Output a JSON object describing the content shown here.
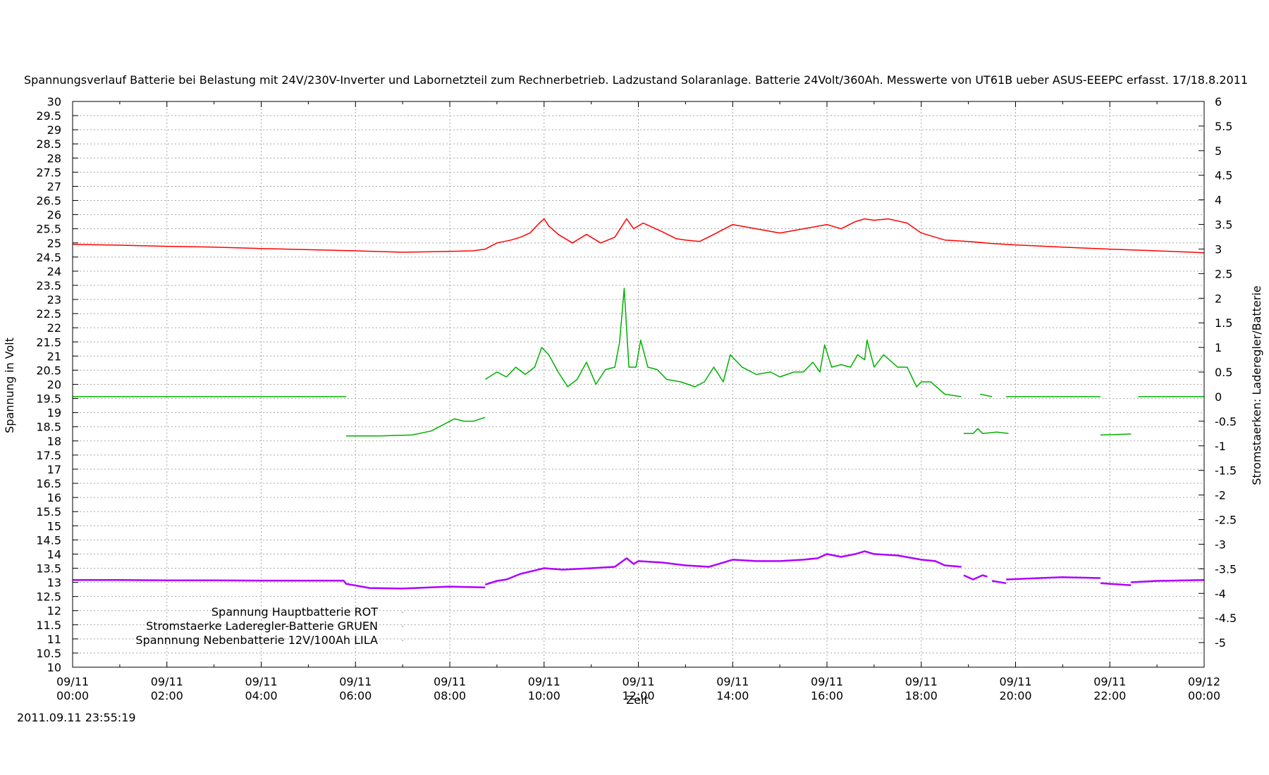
{
  "chart_data": {
    "type": "line",
    "title": "Spannungsverlauf Batterie bei Belastung mit 24V/230V-Inverter und Labornetzteil zum Rechnerbetrieb. Ladzustand Solaranlage. Batterie 24Volt/360Ah. Messwerte von UT61B ueber ASUS-EEEPC erfasst. 17/18.8.2011",
    "xlabel": "Zeit",
    "ylabel": "Spannung in Volt",
    "y2label": "Stromstaerken: Laderegler/Batterie",
    "timestamp": "2011.09.11 23:55:19",
    "grid": true,
    "legend_position": "bottom-left",
    "xlim": [
      "09/11 00:00",
      "09/12 00:00"
    ],
    "ylim": [
      10,
      30
    ],
    "y2lim": [
      -5.5,
      6.0
    ],
    "x_ticks": [
      {
        "hour": 0,
        "date": "09/11",
        "time": "00:00"
      },
      {
        "hour": 2,
        "date": "09/11",
        "time": "02:00"
      },
      {
        "hour": 4,
        "date": "09/11",
        "time": "04:00"
      },
      {
        "hour": 6,
        "date": "09/11",
        "time": "06:00"
      },
      {
        "hour": 8,
        "date": "09/11",
        "time": "08:00"
      },
      {
        "hour": 10,
        "date": "09/11",
        "time": "10:00"
      },
      {
        "hour": 12,
        "date": "09/11",
        "time": "12:00"
      },
      {
        "hour": 14,
        "date": "09/11",
        "time": "14:00"
      },
      {
        "hour": 16,
        "date": "09/11",
        "time": "16:00"
      },
      {
        "hour": 18,
        "date": "09/11",
        "time": "18:00"
      },
      {
        "hour": 20,
        "date": "09/11",
        "time": "20:00"
      },
      {
        "hour": 22,
        "date": "09/11",
        "time": "22:00"
      },
      {
        "hour": 24,
        "date": "09/12",
        "time": "00:00"
      }
    ],
    "y_ticks": [
      "10",
      "10.5",
      "11",
      "11.5",
      "12",
      "12.5",
      "13",
      "13.5",
      "14",
      "14.5",
      "15",
      "15.5",
      "16",
      "16.5",
      "17",
      "17.5",
      "18",
      "18.5",
      "19",
      "19.5",
      "20",
      "20.5",
      "21",
      "21.5",
      "22",
      "22.5",
      "23",
      "23.5",
      "24",
      "24.5",
      "25",
      "25.5",
      "26",
      "26.5",
      "27",
      "27.5",
      "28",
      "28.5",
      "29",
      "29.5",
      "30"
    ],
    "y2_ticks": [
      "-5",
      "-4.5",
      "-4",
      "-3.5",
      "-3",
      "-2.5",
      "-2",
      "-1.5",
      "-1",
      "-0.5",
      "0",
      "0.5",
      "1",
      "1.5",
      "2",
      "2.5",
      "3",
      "3.5",
      "4",
      "4.5",
      "5",
      "5.5",
      "6"
    ],
    "series": [
      {
        "name": "Spannung Hauptbatterie ROT",
        "color": "#ff0000",
        "axis": "y",
        "segments": [
          [
            [
              0,
              24.95
            ],
            [
              1,
              24.92
            ],
            [
              2,
              24.88
            ],
            [
              3,
              24.85
            ],
            [
              4,
              24.8
            ],
            [
              5,
              24.76
            ],
            [
              6,
              24.72
            ],
            [
              7,
              24.67
            ],
            [
              8,
              24.7
            ],
            [
              8.5,
              24.72
            ],
            [
              8.75,
              24.78
            ],
            [
              9.0,
              25.0
            ],
            [
              9.3,
              25.1
            ],
            [
              9.5,
              25.2
            ],
            [
              9.7,
              25.35
            ],
            [
              9.9,
              25.7
            ],
            [
              10.0,
              25.85
            ],
            [
              10.1,
              25.6
            ],
            [
              10.3,
              25.3
            ],
            [
              10.6,
              25.0
            ],
            [
              10.9,
              25.3
            ],
            [
              11.2,
              25.0
            ],
            [
              11.5,
              25.2
            ],
            [
              11.75,
              25.85
            ],
            [
              11.9,
              25.5
            ],
            [
              12.1,
              25.7
            ],
            [
              12.5,
              25.4
            ],
            [
              12.8,
              25.15
            ],
            [
              13.0,
              25.1
            ],
            [
              13.3,
              25.05
            ],
            [
              13.6,
              25.3
            ],
            [
              14.0,
              25.65
            ],
            [
              14.5,
              25.5
            ],
            [
              15.0,
              25.35
            ],
            [
              15.5,
              25.5
            ],
            [
              16.0,
              25.65
            ],
            [
              16.3,
              25.5
            ],
            [
              16.6,
              25.75
            ],
            [
              16.8,
              25.85
            ],
            [
              17.0,
              25.8
            ],
            [
              17.3,
              25.85
            ],
            [
              17.7,
              25.7
            ],
            [
              18.0,
              25.35
            ],
            [
              18.5,
              25.1
            ],
            [
              19.0,
              25.05
            ],
            [
              19.5,
              24.98
            ],
            [
              20.0,
              24.93
            ],
            [
              21.0,
              24.85
            ],
            [
              22.0,
              24.78
            ],
            [
              23.0,
              24.72
            ],
            [
              24.0,
              24.65
            ]
          ]
        ]
      },
      {
        "name": "Stromstaerke Laderegler-Batterie GRUEN",
        "color": "#00b000",
        "axis": "y2",
        "segments": [
          [
            [
              0,
              0.0
            ],
            [
              5.8,
              0.0
            ]
          ],
          [
            [
              5.8,
              -0.8
            ],
            [
              6.5,
              -0.8
            ],
            [
              7.2,
              -0.78
            ],
            [
              7.6,
              -0.7
            ],
            [
              7.9,
              -0.55
            ],
            [
              8.1,
              -0.45
            ],
            [
              8.3,
              -0.5
            ],
            [
              8.5,
              -0.5
            ],
            [
              8.75,
              -0.42
            ]
          ],
          [
            [
              8.75,
              0.35
            ],
            [
              9.0,
              0.5
            ],
            [
              9.2,
              0.4
            ],
            [
              9.4,
              0.6
            ],
            [
              9.6,
              0.45
            ],
            [
              9.8,
              0.6
            ],
            [
              9.95,
              1.0
            ],
            [
              10.1,
              0.85
            ],
            [
              10.3,
              0.5
            ],
            [
              10.5,
              0.2
            ],
            [
              10.7,
              0.35
            ],
            [
              10.9,
              0.7
            ],
            [
              11.1,
              0.25
            ],
            [
              11.3,
              0.55
            ],
            [
              11.5,
              0.6
            ],
            [
              11.6,
              1.1
            ],
            [
              11.7,
              2.2
            ],
            [
              11.8,
              0.6
            ],
            [
              11.95,
              0.6
            ],
            [
              12.05,
              1.15
            ],
            [
              12.2,
              0.6
            ],
            [
              12.4,
              0.55
            ],
            [
              12.6,
              0.35
            ],
            [
              12.9,
              0.3
            ],
            [
              13.2,
              0.2
            ],
            [
              13.4,
              0.3
            ],
            [
              13.6,
              0.6
            ],
            [
              13.8,
              0.3
            ],
            [
              13.95,
              0.85
            ],
            [
              14.2,
              0.6
            ],
            [
              14.5,
              0.45
            ],
            [
              14.8,
              0.5
            ],
            [
              15.0,
              0.4
            ],
            [
              15.3,
              0.5
            ],
            [
              15.5,
              0.5
            ],
            [
              15.7,
              0.7
            ],
            [
              15.85,
              0.5
            ],
            [
              15.95,
              1.05
            ],
            [
              16.1,
              0.6
            ],
            [
              16.3,
              0.65
            ],
            [
              16.5,
              0.6
            ],
            [
              16.65,
              0.85
            ],
            [
              16.8,
              0.75
            ],
            [
              16.85,
              1.15
            ],
            [
              17.0,
              0.6
            ],
            [
              17.2,
              0.85
            ],
            [
              17.5,
              0.6
            ],
            [
              17.7,
              0.6
            ],
            [
              17.9,
              0.2
            ],
            [
              18.0,
              0.3
            ],
            [
              18.2,
              0.3
            ],
            [
              18.5,
              0.05
            ],
            [
              18.85,
              0.0
            ]
          ],
          [
            [
              19.25,
              0.05
            ],
            [
              19.5,
              0.0
            ]
          ],
          [
            [
              19.8,
              0.0
            ],
            [
              21.8,
              0.0
            ]
          ],
          [
            [
              22.6,
              0.0
            ],
            [
              24.0,
              0.0
            ]
          ],
          [
            [
              18.9,
              -0.75
            ],
            [
              19.1,
              -0.75
            ],
            [
              19.2,
              -0.65
            ],
            [
              19.3,
              -0.75
            ],
            [
              19.6,
              -0.72
            ],
            [
              19.85,
              -0.75
            ]
          ],
          [
            [
              21.8,
              -0.78
            ],
            [
              22.45,
              -0.76
            ]
          ]
        ]
      },
      {
        "name": "Spannnung Nebenbatterie 12V/100Ah LILA",
        "color": "#b000ff",
        "axis": "y",
        "segments": [
          [
            [
              0,
              13.08
            ],
            [
              1,
              13.08
            ],
            [
              2,
              13.07
            ],
            [
              3,
              13.07
            ],
            [
              4,
              13.06
            ],
            [
              5,
              13.06
            ],
            [
              5.75,
              13.06
            ],
            [
              5.8,
              12.95
            ],
            [
              6.3,
              12.8
            ],
            [
              7.0,
              12.78
            ],
            [
              8.0,
              12.85
            ],
            [
              8.75,
              12.82
            ]
          ],
          [
            [
              8.75,
              12.92
            ],
            [
              9.0,
              13.05
            ],
            [
              9.2,
              13.1
            ],
            [
              9.5,
              13.3
            ],
            [
              10.0,
              13.5
            ],
            [
              10.4,
              13.45
            ],
            [
              11.0,
              13.5
            ],
            [
              11.5,
              13.55
            ],
            [
              11.75,
              13.85
            ],
            [
              11.9,
              13.65
            ],
            [
              12.0,
              13.75
            ],
            [
              12.5,
              13.7
            ],
            [
              13.0,
              13.6
            ],
            [
              13.5,
              13.55
            ],
            [
              14.0,
              13.8
            ],
            [
              14.5,
              13.75
            ],
            [
              15.0,
              13.75
            ],
            [
              15.5,
              13.8
            ],
            [
              15.8,
              13.85
            ],
            [
              16.0,
              14.0
            ],
            [
              16.3,
              13.9
            ],
            [
              16.6,
              14.0
            ],
            [
              16.8,
              14.1
            ],
            [
              17.0,
              14.0
            ],
            [
              17.5,
              13.95
            ],
            [
              18.0,
              13.8
            ],
            [
              18.3,
              13.75
            ],
            [
              18.5,
              13.6
            ],
            [
              18.85,
              13.55
            ]
          ],
          [
            [
              18.9,
              13.25
            ],
            [
              19.1,
              13.1
            ],
            [
              19.3,
              13.25
            ],
            [
              19.4,
              13.2
            ]
          ],
          [
            [
              19.5,
              13.05
            ],
            [
              19.8,
              12.97
            ]
          ],
          [
            [
              19.8,
              13.1
            ],
            [
              20.5,
              13.15
            ],
            [
              21.0,
              13.18
            ],
            [
              21.8,
              13.15
            ]
          ],
          [
            [
              21.8,
              12.97
            ],
            [
              22.45,
              12.9
            ]
          ],
          [
            [
              22.45,
              13.0
            ],
            [
              23.0,
              13.05
            ],
            [
              24.0,
              13.08
            ]
          ]
        ]
      }
    ]
  }
}
